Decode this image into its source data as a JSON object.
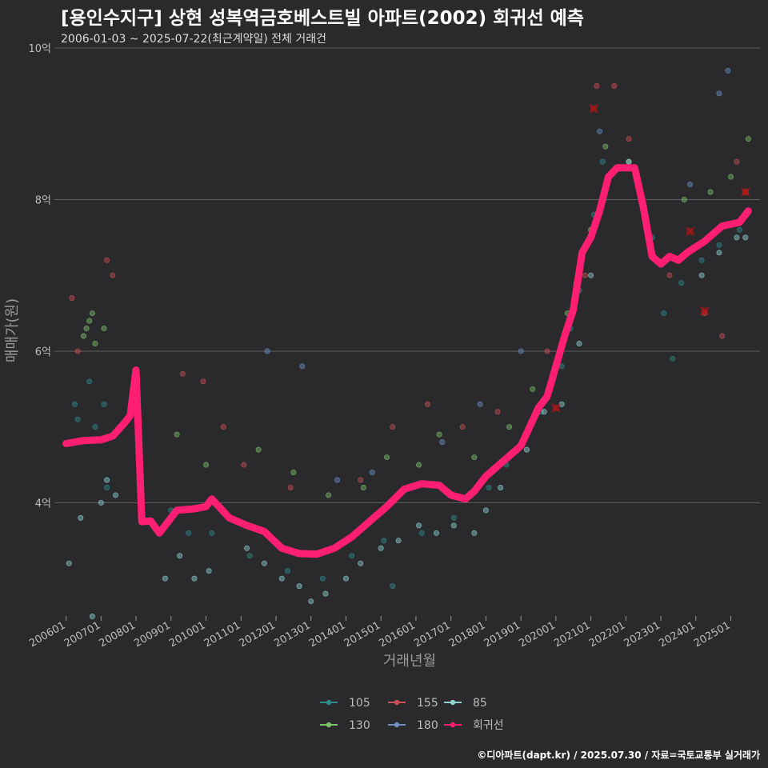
{
  "header": {
    "title": "[용인수지구] 상현 성복역금호베스트빌 아파트(2002) 회귀선 예측",
    "subtitle": "2006-01-03 ~ 2025-07-22(최근계약일) 전체 거래건"
  },
  "caption": "©디아파트(dapt.kr) / 2025.07.30 / 자료=국토교통부 실거래가",
  "chart_data": {
    "type": "scatter",
    "xlabel": "거래년월",
    "ylabel": "매매가(원)",
    "x_range": [
      "2005-09",
      "2025-11"
    ],
    "ylim": [
      2.4,
      10.0
    ],
    "y_ticks": [
      4,
      6,
      8,
      10
    ],
    "y_tick_labels": [
      "4억",
      "6억",
      "8억",
      "10억"
    ],
    "x_ticks": [
      "200601",
      "200701",
      "200801",
      "200901",
      "201001",
      "201101",
      "201201",
      "201301",
      "201401",
      "201501",
      "201601",
      "201701",
      "201801",
      "201901",
      "202001",
      "202101",
      "202201",
      "202301",
      "202401",
      "202501"
    ],
    "grid": "horizontal",
    "legend_position": "bottom",
    "series": [
      {
        "name": "105",
        "color": "#2f8a8c",
        "points": [
          [
            "2006-03",
            4.8
          ],
          [
            "2006-04",
            5.3
          ],
          [
            "2006-05",
            5.1
          ],
          [
            "2006-09",
            5.6
          ],
          [
            "2006-11",
            5.0
          ],
          [
            "2007-02",
            5.3
          ],
          [
            "2007-03",
            4.2
          ],
          [
            "2008-03",
            3.9
          ],
          [
            "2009-01",
            3.9
          ],
          [
            "2009-07",
            3.6
          ],
          [
            "2010-03",
            3.6
          ],
          [
            "2011-04",
            3.3
          ],
          [
            "2012-05",
            3.1
          ],
          [
            "2013-05",
            3.0
          ],
          [
            "2014-03",
            3.3
          ],
          [
            "2015-02",
            3.5
          ],
          [
            "2015-05",
            2.9
          ],
          [
            "2016-03",
            3.6
          ],
          [
            "2017-02",
            3.8
          ],
          [
            "2018-02",
            4.2
          ],
          [
            "2018-08",
            4.5
          ],
          [
            "2019-04",
            5.0
          ],
          [
            "2019-08",
            5.2
          ],
          [
            "2020-03",
            5.8
          ],
          [
            "2020-06",
            6.3
          ],
          [
            "2020-09",
            6.8
          ],
          [
            "2021-02",
            7.8
          ],
          [
            "2021-05",
            8.5
          ],
          [
            "2022-10",
            7.5
          ],
          [
            "2023-02",
            6.5
          ],
          [
            "2023-05",
            5.9
          ],
          [
            "2023-08",
            6.9
          ],
          [
            "2024-03",
            7.2
          ],
          [
            "2024-09",
            7.4
          ],
          [
            "2025-04",
            7.6
          ]
        ]
      },
      {
        "name": "130",
        "color": "#7cc26a",
        "points": [
          [
            "2006-07",
            6.2
          ],
          [
            "2006-08",
            6.3
          ],
          [
            "2006-09",
            6.4
          ],
          [
            "2006-10",
            6.5
          ],
          [
            "2006-11",
            6.1
          ],
          [
            "2007-02",
            6.3
          ],
          [
            "2009-03",
            4.9
          ],
          [
            "2010-01",
            4.5
          ],
          [
            "2011-07",
            4.7
          ],
          [
            "2012-07",
            4.4
          ],
          [
            "2013-07",
            4.1
          ],
          [
            "2014-07",
            4.2
          ],
          [
            "2015-03",
            4.6
          ],
          [
            "2016-02",
            4.5
          ],
          [
            "2016-09",
            4.9
          ],
          [
            "2017-09",
            4.6
          ],
          [
            "2018-09",
            5.0
          ],
          [
            "2019-05",
            5.5
          ],
          [
            "2020-05",
            6.5
          ],
          [
            "2020-08",
            6.9
          ],
          [
            "2021-01",
            7.6
          ],
          [
            "2021-06",
            8.7
          ],
          [
            "2022-02",
            8.5
          ],
          [
            "2023-09",
            8.0
          ],
          [
            "2024-06",
            8.1
          ],
          [
            "2025-01",
            8.3
          ],
          [
            "2025-07",
            8.8
          ]
        ]
      },
      {
        "name": "155",
        "color": "#cc4e57",
        "points": [
          [
            "2006-03",
            6.7
          ],
          [
            "2006-05",
            6.0
          ],
          [
            "2007-03",
            7.2
          ],
          [
            "2007-05",
            7.0
          ],
          [
            "2009-05",
            5.7
          ],
          [
            "2009-12",
            5.6
          ],
          [
            "2010-07",
            5.0
          ],
          [
            "2011-02",
            4.5
          ],
          [
            "2012-06",
            4.2
          ],
          [
            "2014-06",
            4.3
          ],
          [
            "2015-05",
            5.0
          ],
          [
            "2016-05",
            5.3
          ],
          [
            "2017-05",
            5.0
          ],
          [
            "2018-05",
            5.2
          ],
          [
            "2019-10",
            6.0
          ],
          [
            "2020-11",
            7.0
          ],
          [
            "2021-03",
            9.5
          ],
          [
            "2021-09",
            9.5
          ],
          [
            "2022-02",
            8.8
          ],
          [
            "2023-04",
            7.0
          ],
          [
            "2024-04",
            6.5
          ],
          [
            "2024-10",
            6.2
          ],
          [
            "2025-03",
            8.5
          ],
          [
            "2025-06",
            8.1
          ]
        ]
      },
      {
        "name": "180",
        "color": "#6d8fc4",
        "points": [
          [
            "2011-10",
            6.0
          ],
          [
            "2012-10",
            5.8
          ],
          [
            "2013-10",
            4.3
          ],
          [
            "2014-10",
            4.4
          ],
          [
            "2016-10",
            4.8
          ],
          [
            "2017-11",
            5.3
          ],
          [
            "2019-01",
            6.0
          ],
          [
            "2021-04",
            8.9
          ],
          [
            "2023-11",
            8.2
          ],
          [
            "2024-09",
            9.4
          ],
          [
            "2024-12",
            9.7
          ]
        ]
      },
      {
        "name": "85",
        "color": "#8fd3d3",
        "points": [
          [
            "2006-02",
            3.2
          ],
          [
            "2006-06",
            3.8
          ],
          [
            "2006-10",
            2.5
          ],
          [
            "2007-01",
            4.0
          ],
          [
            "2007-03",
            4.3
          ],
          [
            "2007-06",
            4.1
          ],
          [
            "2008-11",
            3.0
          ],
          [
            "2009-04",
            3.3
          ],
          [
            "2009-09",
            3.0
          ],
          [
            "2010-02",
            3.1
          ],
          [
            "2011-03",
            3.4
          ],
          [
            "2011-09",
            3.2
          ],
          [
            "2012-03",
            3.0
          ],
          [
            "2012-09",
            2.9
          ],
          [
            "2013-01",
            2.7
          ],
          [
            "2013-06",
            2.8
          ],
          [
            "2014-01",
            3.0
          ],
          [
            "2014-06",
            3.2
          ],
          [
            "2015-01",
            3.4
          ],
          [
            "2015-07",
            3.5
          ],
          [
            "2016-02",
            3.7
          ],
          [
            "2016-08",
            3.6
          ],
          [
            "2017-02",
            3.7
          ],
          [
            "2017-09",
            3.6
          ],
          [
            "2018-01",
            3.9
          ],
          [
            "2018-06",
            4.2
          ],
          [
            "2019-03",
            4.7
          ],
          [
            "2019-09",
            5.2
          ],
          [
            "2020-03",
            5.3
          ],
          [
            "2020-09",
            6.1
          ],
          [
            "2021-01",
            7.0
          ],
          [
            "2021-07",
            8.3
          ],
          [
            "2022-02",
            8.5
          ],
          [
            "2023-03",
            7.2
          ],
          [
            "2024-03",
            7.0
          ],
          [
            "2024-09",
            7.3
          ],
          [
            "2025-03",
            7.5
          ],
          [
            "2025-06",
            7.5
          ]
        ]
      }
    ],
    "regression": {
      "name": "회귀선",
      "color": "#ff1f72",
      "points": [
        [
          "2006-01",
          4.78
        ],
        [
          "2006-07",
          4.82
        ],
        [
          "2007-01",
          4.83
        ],
        [
          "2007-05",
          4.88
        ],
        [
          "2007-09",
          5.05
        ],
        [
          "2007-11",
          5.15
        ],
        [
          "2008-01",
          5.75
        ],
        [
          "2008-03",
          3.75
        ],
        [
          "2008-06",
          3.76
        ],
        [
          "2008-09",
          3.6
        ],
        [
          "2009-01",
          3.8
        ],
        [
          "2009-03",
          3.9
        ],
        [
          "2009-09",
          3.92
        ],
        [
          "2010-01",
          3.95
        ],
        [
          "2010-03",
          4.05
        ],
        [
          "2010-09",
          3.8
        ],
        [
          "2011-03",
          3.7
        ],
        [
          "2011-09",
          3.62
        ],
        [
          "2012-03",
          3.4
        ],
        [
          "2012-09",
          3.33
        ],
        [
          "2013-03",
          3.32
        ],
        [
          "2013-09",
          3.4
        ],
        [
          "2014-03",
          3.55
        ],
        [
          "2014-09",
          3.75
        ],
        [
          "2015-03",
          3.95
        ],
        [
          "2015-09",
          4.18
        ],
        [
          "2016-03",
          4.25
        ],
        [
          "2016-09",
          4.23
        ],
        [
          "2017-01",
          4.1
        ],
        [
          "2017-06",
          4.05
        ],
        [
          "2017-09",
          4.15
        ],
        [
          "2018-01",
          4.35
        ],
        [
          "2018-07",
          4.55
        ],
        [
          "2019-01",
          4.75
        ],
        [
          "2019-07",
          5.25
        ],
        [
          "2019-10",
          5.4
        ],
        [
          "2020-01",
          5.8
        ],
        [
          "2020-04",
          6.2
        ],
        [
          "2020-07",
          6.55
        ],
        [
          "2020-10",
          7.3
        ],
        [
          "2021-01",
          7.5
        ],
        [
          "2021-04",
          7.85
        ],
        [
          "2021-07",
          8.3
        ],
        [
          "2021-10",
          8.42
        ],
        [
          "2022-04",
          8.42
        ],
        [
          "2022-07",
          7.9
        ],
        [
          "2022-10",
          7.25
        ],
        [
          "2023-01",
          7.15
        ],
        [
          "2023-04",
          7.25
        ],
        [
          "2023-07",
          7.2
        ],
        [
          "2023-10",
          7.3
        ],
        [
          "2024-04",
          7.45
        ],
        [
          "2024-10",
          7.65
        ],
        [
          "2025-04",
          7.7
        ],
        [
          "2025-07",
          7.85
        ]
      ]
    },
    "highlight_marks": [
      {
        "x": "2021-02",
        "y": 9.2,
        "color": "#b41414"
      },
      {
        "x": "2020-01",
        "y": 5.25,
        "color": "#b41414"
      },
      {
        "x": "2023-11",
        "y": 7.58,
        "color": "#b41414"
      },
      {
        "x": "2024-04",
        "y": 6.53,
        "color": "#b41414"
      },
      {
        "x": "2025-06",
        "y": 8.1,
        "color": "#b41414"
      }
    ]
  }
}
